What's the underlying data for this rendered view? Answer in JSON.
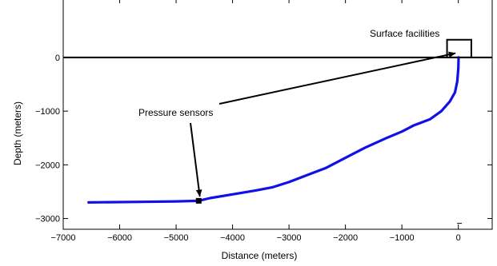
{
  "chart_data": {
    "type": "line",
    "title": "",
    "xlabel": "Distance (meters)",
    "ylabel": "Depth (meters)",
    "xlim": [
      -7000,
      600
    ],
    "ylim": [
      -3200,
      1100
    ],
    "x_ticks": [
      -7000,
      -6000,
      -5000,
      -4000,
      -3000,
      -2000,
      -1000,
      0
    ],
    "y_ticks": [
      -3000,
      -2000,
      -1000,
      0
    ],
    "grid": false,
    "series": [
      {
        "color": "#1010e8",
        "x": [
          -6550,
          -6200,
          -5600,
          -5000,
          -4600,
          -4400,
          -4000,
          -3600,
          -3300,
          -3000,
          -2700,
          -2350,
          -2000,
          -1650,
          -1250,
          -1000,
          -800,
          -500,
          -300,
          -150,
          -60,
          -20,
          0,
          5
        ],
        "y": [
          -2700,
          -2695,
          -2690,
          -2680,
          -2670,
          -2620,
          -2550,
          -2480,
          -2420,
          -2320,
          -2200,
          -2060,
          -1870,
          -1680,
          -1490,
          -1380,
          -1270,
          -1150,
          -1000,
          -820,
          -650,
          -450,
          -200,
          0
        ]
      }
    ],
    "reference_line": {
      "y": 0,
      "color": "#000000"
    },
    "sensor_marker": {
      "x": -4600,
      "y": -2670
    },
    "facility_box": {
      "x": [
        -200,
        230
      ],
      "y": [
        0,
        330
      ]
    },
    "annotations": [
      {
        "text": "Surface facilities",
        "arrow_to": [
          -50,
          80
        ]
      },
      {
        "text": "Pressure sensors",
        "arrow_to": [
          -4580,
          -2590
        ]
      }
    ],
    "stray_mark": {
      "x": 20,
      "y": -3090
    }
  }
}
